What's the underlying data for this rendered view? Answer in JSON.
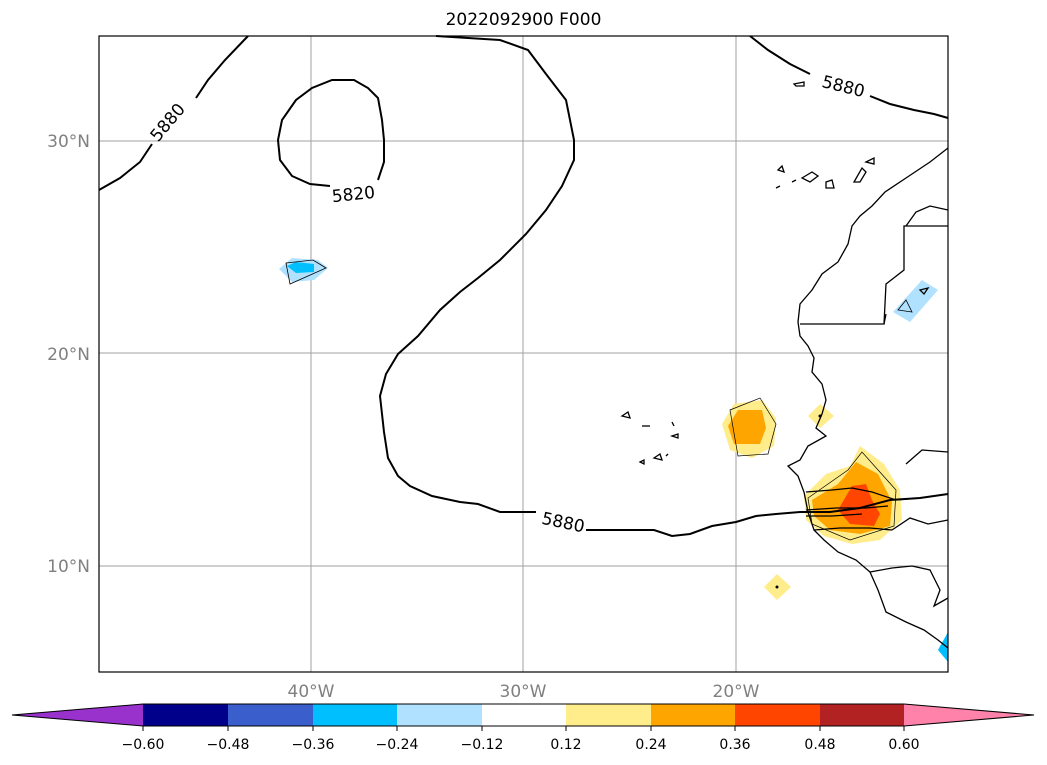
{
  "title": "2022092900 F000",
  "map": {
    "lon_range": [
      -50,
      -10
    ],
    "lat_range": [
      5,
      35
    ],
    "lat_ticks": [
      {
        "value": 10,
        "label": "10°N"
      },
      {
        "value": 20,
        "label": "20°N"
      },
      {
        "value": 30,
        "label": "30°N"
      }
    ],
    "lon_ticks": [
      {
        "value": -40,
        "label": "40°W"
      },
      {
        "value": -30,
        "label": "30°W"
      },
      {
        "value": -20,
        "label": "20°W"
      }
    ],
    "grid": true,
    "contour_labels": [
      "5880",
      "5820",
      "5880",
      "5880"
    ]
  },
  "colorbar": {
    "labels": [
      "−0.60",
      "−0.48",
      "−0.36",
      "−0.24",
      "−0.12",
      "0.12",
      "0.24",
      "0.36",
      "0.48",
      "0.60"
    ],
    "colors": [
      "#9932cc",
      "#00008b",
      "#3a5fcd",
      "#00bfff",
      "#b0e2ff",
      "#ffffff",
      "#ffec8b",
      "#ffa500",
      "#ff4500",
      "#b22222",
      "#ff82ab"
    ]
  }
}
